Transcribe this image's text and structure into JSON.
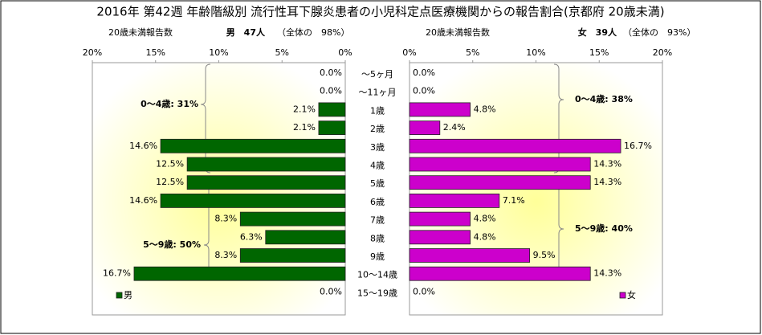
{
  "chart_data": {
    "type": "butterfly",
    "title": "2016年 第42週 年齢階級別 流行性耳下腺炎患者の小児科定点医療機関からの報告割合(京都府 20歳未満)",
    "categories": [
      "～5ヶ月",
      "～11ヶ月",
      "1歳",
      "2歳",
      "3歳",
      "4歳",
      "5歳",
      "6歳",
      "7歳",
      "8歳",
      "9歳",
      "10～14歳",
      "15～19歳"
    ],
    "series": [
      {
        "name": "男",
        "color": "#006600",
        "header": {
          "label": "20歳未満報告数",
          "count": "男　47人",
          "share": "（全体の　98%）"
        },
        "values": [
          0,
          0,
          2.1,
          2.1,
          14.6,
          12.5,
          12.5,
          14.6,
          8.3,
          6.3,
          8.3,
          16.7,
          0
        ],
        "value_labels": [
          "0.0%",
          "0.0%",
          "2.1%",
          "2.1%",
          "14.6%",
          "12.5%",
          "12.5%",
          "14.6%",
          "8.3%",
          "6.3%",
          "8.3%",
          "16.7%",
          "0.0%"
        ],
        "annotations": [
          "0～4歳: 31%",
          "5～9歳: 50%"
        ]
      },
      {
        "name": "女",
        "color": "#cc00cc",
        "header": {
          "label": "20歳未満報告数",
          "count": "女　39人",
          "share": "（全体の　93%）"
        },
        "values": [
          0,
          0,
          4.8,
          2.4,
          16.7,
          14.3,
          14.3,
          7.1,
          4.8,
          4.8,
          9.5,
          14.3,
          0
        ],
        "value_labels": [
          "0.0%",
          "0.0%",
          "4.8%",
          "2.4%",
          "16.7%",
          "14.3%",
          "14.3%",
          "7.1%",
          "4.8%",
          "4.8%",
          "9.5%",
          "14.3%",
          "0.0%"
        ],
        "annotations": [
          "0～4歳: 38%",
          "5～9歳: 40%"
        ]
      }
    ],
    "xlim": [
      0,
      20
    ],
    "xticks": [
      {
        "value": 0,
        "label": "0%"
      },
      {
        "value": 5,
        "label": "5%"
      },
      {
        "value": 10,
        "label": "10%"
      },
      {
        "value": 15,
        "label": "15%"
      },
      {
        "value": 20,
        "label": "20%"
      }
    ]
  }
}
